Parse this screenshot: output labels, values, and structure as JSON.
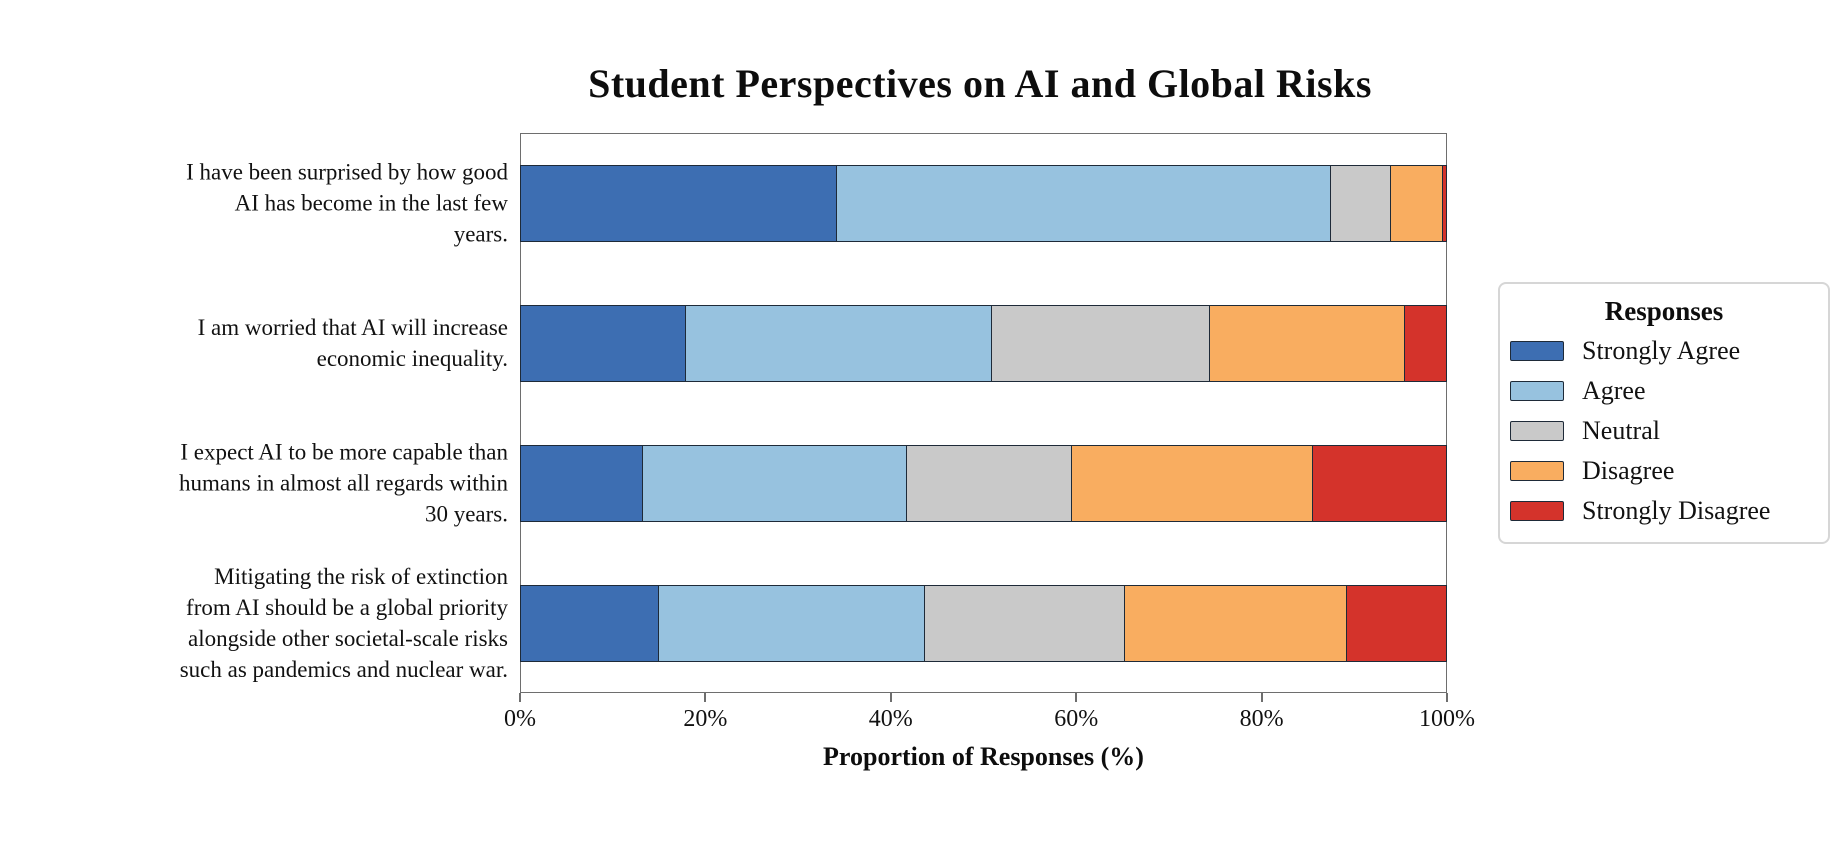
{
  "chart_data": {
    "type": "bar",
    "stacked": true,
    "orientation": "horizontal",
    "title": "Student Perspectives on AI and Global Risks",
    "xlabel": "Proportion of Responses (%)",
    "legend_title": "Responses",
    "legend_position": "right",
    "grid": true,
    "xlim": [
      0,
      100
    ],
    "xticks": [
      {
        "value": 0,
        "label": "0%"
      },
      {
        "value": 20,
        "label": "20%"
      },
      {
        "value": 40,
        "label": "40%"
      },
      {
        "value": 60,
        "label": "60%"
      },
      {
        "value": 80,
        "label": "80%"
      },
      {
        "value": 100,
        "label": "100%"
      }
    ],
    "categories": [
      "I have been surprised by how good\nAI has become in the last few\nyears.",
      "I am worried that AI will increase\neconomic inequality.",
      "I expect AI to be more capable than\nhumans in almost all regards within\n30 years.",
      "Mitigating the risk of extinction\nfrom AI should be a global priority\nalongside other societal-scale risks\nsuch as pandemics and nuclear war."
    ],
    "series": [
      {
        "name": "Strongly Agree",
        "color": "#3d6eb2",
        "values": [
          34.3,
          18.0,
          13.3,
          15.1
        ]
      },
      {
        "name": "Agree",
        "color": "#97c2df",
        "values": [
          53.2,
          33.0,
          28.5,
          28.7
        ]
      },
      {
        "name": "Neutral",
        "color": "#c9c9c9",
        "values": [
          6.5,
          23.5,
          17.8,
          21.5
        ]
      },
      {
        "name": "Disagree",
        "color": "#f9ad60",
        "values": [
          5.6,
          21.0,
          26.0,
          24.0
        ]
      },
      {
        "name": "Strongly Disagree",
        "color": "#d4332b",
        "values": [
          0.4,
          4.5,
          14.4,
          10.7
        ]
      }
    ],
    "colors": {
      "bar_edge": "#1e2a38",
      "grid": "#dcdcdc",
      "axis": "#6e6e6e",
      "text": "#111111"
    }
  }
}
